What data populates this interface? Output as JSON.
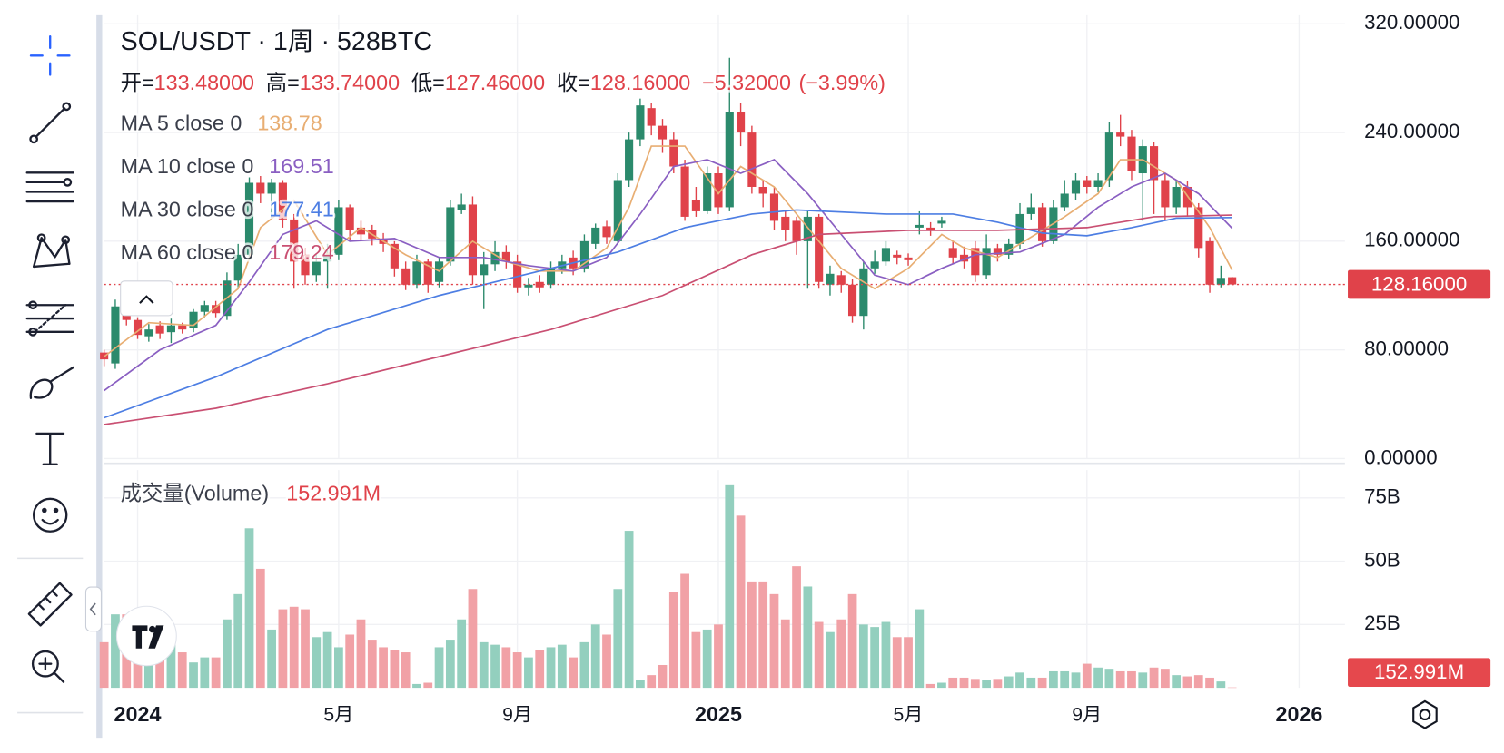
{
  "chart_data": [
    {
      "type": "candlestick",
      "title": "SOL/USDT · 1周 · 528BTC",
      "ohlc_labels": [
        "开=",
        "高=",
        "低=",
        "收="
      ],
      "ohlc_values": [
        133.48,
        133.74,
        127.46,
        128.16
      ],
      "ohlc_value_labels": [
        "133.48000",
        "133.74000",
        "127.46000",
        "128.16000"
      ],
      "change": -5.32,
      "change_label": "−5.32000",
      "change_pct": -3.99,
      "change_pct_label": "(−3.99%)",
      "up_color": "#2b8a6c",
      "down_color": "#e0424a",
      "open": [
        78,
        70,
        112,
        102,
        90,
        98,
        93,
        98,
        96,
        108,
        113,
        105,
        131,
        150,
        203,
        195,
        203,
        176,
        150,
        135,
        145,
        150,
        185,
        170,
        168,
        162,
        158,
        140,
        128,
        145,
        130,
        145,
        183,
        187,
        135,
        143,
        152,
        145,
        126,
        130,
        128,
        140,
        148,
        140,
        158,
        171,
        160,
        205,
        235,
        258,
        245,
        235,
        215,
        190,
        182,
        210,
        185,
        255,
        240,
        200,
        195,
        178,
        175,
        160,
        178,
        128,
        135,
        128,
        105,
        140,
        145,
        150,
        148,
        170,
        170,
        173,
        155,
        150,
        155,
        135,
        155,
        150,
        158,
        180,
        185,
        160,
        185,
        195,
        205,
        200,
        205,
        240,
        237,
        210,
        230,
        205,
        185,
        200,
        185,
        160,
        128,
        133.48
      ],
      "high": [
        80,
        117,
        116,
        104,
        99,
        101,
        103,
        100,
        110,
        116,
        116,
        137,
        158,
        207,
        208,
        206,
        205,
        180,
        155,
        150,
        158,
        190,
        187,
        175,
        172,
        166,
        160,
        145,
        150,
        147,
        148,
        190,
        195,
        193,
        152,
        160,
        157,
        150,
        133,
        135,
        145,
        150,
        153,
        165,
        173,
        175,
        210,
        240,
        265,
        262,
        250,
        240,
        220,
        200,
        215,
        215,
        295,
        262,
        245,
        205,
        200,
        182,
        178,
        182,
        180,
        142,
        138,
        132,
        145,
        153,
        160,
        153,
        151,
        182,
        174,
        178,
        160,
        156,
        160,
        165,
        158,
        162,
        188,
        195,
        188,
        190,
        205,
        210,
        208,
        210,
        248,
        253,
        242,
        235,
        233,
        210,
        205,
        204,
        188,
        163,
        142,
        133.74
      ],
      "low": [
        68,
        66,
        98,
        88,
        86,
        88,
        85,
        92,
        93,
        104,
        104,
        102,
        126,
        146,
        188,
        176,
        170,
        125,
        128,
        130,
        125,
        146,
        160,
        160,
        157,
        152,
        134,
        124,
        125,
        122,
        126,
        142,
        180,
        128,
        110,
        138,
        140,
        122,
        120,
        122,
        125,
        136,
        135,
        137,
        154,
        158,
        158,
        200,
        230,
        238,
        225,
        210,
        175,
        178,
        180,
        180,
        182,
        230,
        195,
        185,
        168,
        160,
        150,
        125,
        125,
        120,
        122,
        100,
        95,
        136,
        142,
        143,
        142,
        165,
        164,
        170,
        143,
        140,
        130,
        132,
        145,
        147,
        154,
        176,
        156,
        158,
        182,
        190,
        195,
        196,
        200,
        230,
        205,
        175,
        180,
        175,
        180,
        178,
        148,
        122,
        126,
        127.46
      ],
      "close": [
        73,
        112,
        102,
        91,
        95,
        92,
        98,
        95,
        108,
        113,
        107,
        131,
        150,
        203,
        195,
        203,
        176,
        145,
        135,
        145,
        150,
        185,
        168,
        165,
        162,
        158,
        140,
        128,
        145,
        128,
        145,
        185,
        187,
        135,
        143,
        152,
        145,
        126,
        128,
        126,
        140,
        145,
        140,
        160,
        170,
        163,
        205,
        235,
        260,
        245,
        235,
        215,
        178,
        182,
        210,
        185,
        255,
        240,
        200,
        195,
        175,
        168,
        160,
        178,
        130,
        136,
        128,
        105,
        140,
        145,
        155,
        148,
        146,
        172,
        168,
        175,
        148,
        145,
        135,
        155,
        150,
        158,
        180,
        185,
        160,
        185,
        195,
        205,
        200,
        205,
        240,
        237,
        212,
        230,
        205,
        185,
        200,
        185,
        155,
        128,
        133,
        128.16
      ],
      "ma": [
        {
          "name": "MA 5 close 0",
          "color": "#e8ae73",
          "x": [
            0,
            4,
            8,
            12,
            14,
            17,
            20,
            23,
            27,
            30,
            33,
            36,
            39,
            42,
            45,
            47,
            49,
            52,
            55,
            57,
            60,
            63,
            66,
            69,
            72,
            75,
            77,
            80,
            83,
            86,
            89,
            91,
            93,
            96,
            99,
            101
          ],
          "values": [
            75,
            100,
            98,
            125,
            170,
            190,
            150,
            170,
            150,
            138,
            160,
            145,
            138,
            138,
            155,
            185,
            230,
            230,
            195,
            215,
            200,
            170,
            140,
            125,
            140,
            165,
            155,
            148,
            163,
            178,
            195,
            220,
            220,
            205,
            170,
            138.78
          ]
        },
        {
          "name": "MA 10 close 0",
          "color": "#8a5fc2",
          "x": [
            0,
            5,
            10,
            13,
            16,
            19,
            22,
            26,
            30,
            34,
            38,
            42,
            45,
            48,
            51,
            54,
            57,
            60,
            63,
            66,
            69,
            72,
            75,
            78,
            82,
            86,
            89,
            92,
            95,
            98,
            101
          ],
          "values": [
            50,
            80,
            98,
            130,
            165,
            175,
            160,
            162,
            148,
            148,
            142,
            138,
            148,
            180,
            215,
            220,
            210,
            220,
            195,
            165,
            135,
            128,
            140,
            150,
            152,
            165,
            185,
            200,
            210,
            195,
            169.51
          ]
        },
        {
          "name": "MA 30 close 0",
          "color": "#4d7ee3",
          "x": [
            0,
            10,
            20,
            30,
            40,
            46,
            52,
            58,
            62,
            70,
            76,
            80,
            84,
            88,
            92,
            96,
            101
          ],
          "values": [
            30,
            60,
            95,
            120,
            140,
            152,
            170,
            180,
            183,
            180,
            180,
            174,
            166,
            164,
            170,
            177,
            177.41
          ]
        },
        {
          "name": "MA 60 close 0",
          "color": "#c94f72",
          "x": [
            0,
            10,
            20,
            30,
            40,
            50,
            58,
            64,
            72,
            80,
            88,
            94,
            101
          ],
          "values": [
            25,
            37,
            55,
            75,
            95,
            120,
            150,
            165,
            168,
            168,
            170,
            178,
            179.24
          ]
        }
      ],
      "xlim": [
        0,
        111.1
      ],
      "ylim": [
        0,
        327
      ],
      "yticks": [
        {
          "value": 320,
          "label": "320.00000"
        },
        {
          "value": 240,
          "label": "240.00000"
        },
        {
          "value": 160,
          "label": "160.00000"
        },
        {
          "value": 80,
          "label": "80.00000"
        },
        {
          "value": 0,
          "label": "0.00000"
        }
      ],
      "last_price": {
        "value": 128.16,
        "label": "128.16000"
      }
    },
    {
      "type": "bar",
      "title": "成交量(Volume)",
      "up_color": "#93cfbe",
      "down_color": "#f1a1a6",
      "values": [
        18,
        29,
        29,
        27,
        22,
        20,
        23,
        14,
        10,
        12,
        12,
        27,
        37,
        63,
        47,
        23,
        31,
        32,
        31,
        20,
        22,
        16,
        21,
        27,
        19,
        16,
        15,
        14,
        1.5,
        2,
        16,
        19,
        27,
        39,
        18,
        17,
        16,
        14,
        12,
        15,
        16,
        17,
        12,
        18,
        25,
        21,
        39,
        62,
        3,
        5,
        9,
        38,
        45,
        22,
        23,
        25,
        80,
        68,
        42,
        42,
        37,
        27,
        48,
        40,
        26,
        22,
        27,
        37,
        25,
        24,
        26,
        20,
        20,
        31,
        1.5,
        2,
        4,
        4,
        3.5,
        3,
        3.5,
        4.5,
        6,
        4,
        4,
        6.5,
        6.5,
        6,
        9.5,
        8,
        7.5,
        6.5,
        6.5,
        6,
        8,
        7.5,
        5,
        4.5,
        5,
        4,
        2.5,
        0.152991
      ],
      "last_value_label": "152.991M",
      "xlim": [
        0,
        111.1
      ],
      "ylim": [
        0,
        86
      ],
      "yticks": [
        {
          "value": 75,
          "label": "75B"
        },
        {
          "value": 50,
          "label": "50B"
        },
        {
          "value": 25,
          "label": "25B"
        }
      ],
      "xticks": [
        {
          "value": 3,
          "label": "2024"
        },
        {
          "value": 21,
          "label": "5月"
        },
        {
          "value": 37,
          "label": "9月"
        },
        {
          "value": 55,
          "label": "2025"
        },
        {
          "value": 72,
          "label": "5月"
        },
        {
          "value": 88,
          "label": "9月"
        },
        {
          "value": 107,
          "label": "2026"
        }
      ]
    }
  ]
}
